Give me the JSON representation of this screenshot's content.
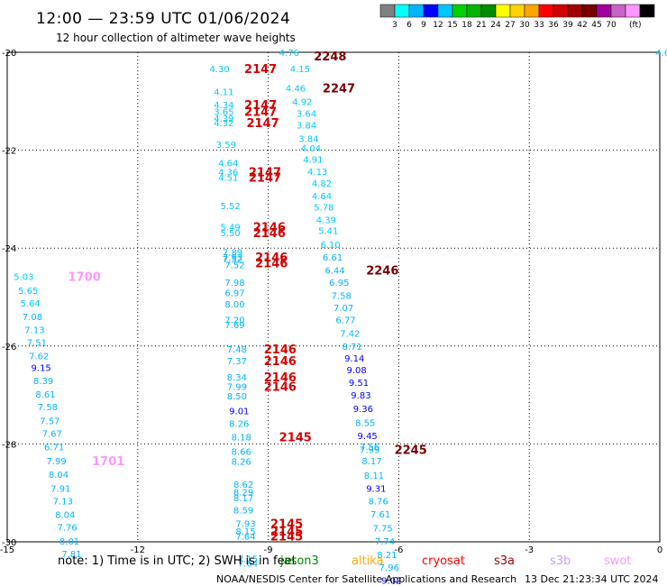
{
  "header": {
    "title": "12:00 — 23:59 UTC 01/06/2024",
    "subtitle": "12 hour collection of altimeter wave heights"
  },
  "colorbar": {
    "unit": "(ft)",
    "colors": [
      "#808080",
      "#00ffff",
      "#00b4ff",
      "#0000ff",
      "#00c8ff",
      "#00d200",
      "#00b400",
      "#008c00",
      "#ffff00",
      "#ffd200",
      "#ffa500",
      "#ff0000",
      "#d20000",
      "#a00000",
      "#780000",
      "#a000a0",
      "#c864c8",
      "#ff96ff",
      "#000000"
    ],
    "labels": [
      "3",
      "6",
      "9",
      "12",
      "15",
      "18",
      "21",
      "24",
      "27",
      "30",
      "33",
      "36",
      "39",
      "42",
      "45",
      "70"
    ]
  },
  "chart_data": {
    "type": "scatter",
    "title": "12:00 — 23:59 UTC 01/06/2024",
    "subtitle": "12 hour collection of altimeter wave heights",
    "xlim": [
      -15,
      0
    ],
    "ylim": [
      -30,
      -20
    ],
    "x_ticks": [
      "-15",
      "-12",
      "-9",
      "-6",
      "-3",
      "0"
    ],
    "y_ticks": [
      "-20",
      "-22",
      "-24",
      "-26",
      "-28",
      "-30"
    ],
    "grid": true,
    "points": [
      {
        "x": -8.75,
        "y": -20.0,
        "v": "4.76",
        "c": "#00c8ff"
      },
      {
        "x": -8.5,
        "y": -20.33,
        "v": "4.15",
        "c": "#00c8ff"
      },
      {
        "x": -10.35,
        "y": -20.33,
        "v": "4.30",
        "c": "#00c8ff"
      },
      {
        "x": -10.25,
        "y": -20.8,
        "v": "4.11",
        "c": "#00c8ff"
      },
      {
        "x": -8.6,
        "y": -20.73,
        "v": "4.46",
        "c": "#00c8ff"
      },
      {
        "x": -8.45,
        "y": -21.0,
        "v": "4.92",
        "c": "#00c8ff"
      },
      {
        "x": -10.25,
        "y": -21.07,
        "v": "4.34",
        "c": "#00c8ff"
      },
      {
        "x": -10.25,
        "y": -21.21,
        "v": "3.65",
        "c": "#00c8ff"
      },
      {
        "x": -10.25,
        "y": -21.34,
        "v": "4.39",
        "c": "#00c8ff"
      },
      {
        "x": -10.25,
        "y": -21.44,
        "v": "4.32",
        "c": "#00c8ff"
      },
      {
        "x": -8.35,
        "y": -21.24,
        "v": "3.64",
        "c": "#00c8ff"
      },
      {
        "x": -8.35,
        "y": -21.48,
        "v": "3.84",
        "c": "#00c8ff"
      },
      {
        "x": -8.3,
        "y": -21.76,
        "v": "3.84",
        "c": "#00c8ff"
      },
      {
        "x": -10.2,
        "y": -21.88,
        "v": "3.59",
        "c": "#00c8ff"
      },
      {
        "x": -8.25,
        "y": -21.95,
        "v": "4.04",
        "c": "#00c8ff"
      },
      {
        "x": -8.2,
        "y": -22.18,
        "v": "4.91",
        "c": "#00c8ff"
      },
      {
        "x": -10.15,
        "y": -22.26,
        "v": "4.64",
        "c": "#00c8ff"
      },
      {
        "x": -10.15,
        "y": -22.44,
        "v": "4.36",
        "c": "#00c8ff"
      },
      {
        "x": -10.15,
        "y": -22.55,
        "v": "4.51",
        "c": "#00c8ff"
      },
      {
        "x": -8.1,
        "y": -22.43,
        "v": "4.13",
        "c": "#00c8ff"
      },
      {
        "x": -8.0,
        "y": -22.67,
        "v": "4.82",
        "c": "#00c8ff"
      },
      {
        "x": -8.0,
        "y": -22.93,
        "v": "4.64",
        "c": "#00c8ff"
      },
      {
        "x": -7.95,
        "y": -23.16,
        "v": "5.78",
        "c": "#00c8ff"
      },
      {
        "x": -10.1,
        "y": -23.13,
        "v": "5.52",
        "c": "#00c8ff"
      },
      {
        "x": -7.9,
        "y": -23.42,
        "v": "4.39",
        "c": "#00c8ff"
      },
      {
        "x": -10.1,
        "y": -23.56,
        "v": "5.49",
        "c": "#00c8ff"
      },
      {
        "x": -10.1,
        "y": -23.68,
        "v": "5.50",
        "c": "#00c8ff"
      },
      {
        "x": -7.85,
        "y": -23.64,
        "v": "5.41",
        "c": "#00c8ff"
      },
      {
        "x": -7.8,
        "y": -23.92,
        "v": "6.10",
        "c": "#00c8ff"
      },
      {
        "x": -10.05,
        "y": -24.08,
        "v": "7.89",
        "c": "#00b4ff"
      },
      {
        "x": -10.05,
        "y": -24.18,
        "v": "7.93",
        "c": "#00b4ff"
      },
      {
        "x": -10.05,
        "y": -24.22,
        "v": "7.52",
        "c": "#00b4ff"
      },
      {
        "x": -10.0,
        "y": -24.34,
        "v": "7.52",
        "c": "#00b4ff"
      },
      {
        "x": -7.75,
        "y": -24.18,
        "v": "6.61",
        "c": "#00b4ff"
      },
      {
        "x": -7.7,
        "y": -24.45,
        "v": "6.44",
        "c": "#00b4ff"
      },
      {
        "x": -7.6,
        "y": -24.7,
        "v": "6.95",
        "c": "#00b4ff"
      },
      {
        "x": -10.0,
        "y": -24.7,
        "v": "7.98",
        "c": "#00b4ff"
      },
      {
        "x": -10.0,
        "y": -24.91,
        "v": "6.97",
        "c": "#00b4ff"
      },
      {
        "x": -7.55,
        "y": -24.96,
        "v": "7.58",
        "c": "#00b4ff"
      },
      {
        "x": -10.0,
        "y": -25.14,
        "v": "8.00",
        "c": "#00b4ff"
      },
      {
        "x": -7.5,
        "y": -25.21,
        "v": "7.07",
        "c": "#00b4ff"
      },
      {
        "x": -10.0,
        "y": -25.46,
        "v": "7.20",
        "c": "#00b4ff"
      },
      {
        "x": -10.0,
        "y": -25.56,
        "v": "7.69",
        "c": "#00b4ff"
      },
      {
        "x": -7.45,
        "y": -25.46,
        "v": "6.77",
        "c": "#00b4ff"
      },
      {
        "x": -7.35,
        "y": -25.74,
        "v": "7.42",
        "c": "#00b4ff"
      },
      {
        "x": -7.3,
        "y": -26.0,
        "v": "8.71",
        "c": "#00b4ff"
      },
      {
        "x": -9.95,
        "y": -26.06,
        "v": "7.48",
        "c": "#00b4ff"
      },
      {
        "x": -7.25,
        "y": -26.24,
        "v": "9.14",
        "c": "#0000ff"
      },
      {
        "x": -9.95,
        "y": -26.3,
        "v": "7.37",
        "c": "#00b4ff"
      },
      {
        "x": -7.2,
        "y": -26.48,
        "v": "9.08",
        "c": "#0000ff"
      },
      {
        "x": -9.95,
        "y": -26.63,
        "v": "8.34",
        "c": "#00b4ff"
      },
      {
        "x": -7.15,
        "y": -26.74,
        "v": "9.51",
        "c": "#0000ff"
      },
      {
        "x": -9.95,
        "y": -26.82,
        "v": "7.99",
        "c": "#00b4ff"
      },
      {
        "x": -9.95,
        "y": -27.02,
        "v": "8.50",
        "c": "#00b4ff"
      },
      {
        "x": -7.1,
        "y": -27.0,
        "v": "9.83",
        "c": "#0000ff"
      },
      {
        "x": -9.9,
        "y": -27.32,
        "v": "9.01",
        "c": "#0000ff"
      },
      {
        "x": -7.05,
        "y": -27.27,
        "v": "9.36",
        "c": "#0000ff"
      },
      {
        "x": -9.9,
        "y": -27.58,
        "v": "8.26",
        "c": "#00b4ff"
      },
      {
        "x": -7.0,
        "y": -27.56,
        "v": "8.55",
        "c": "#00b4ff"
      },
      {
        "x": -6.95,
        "y": -27.83,
        "v": "9.45",
        "c": "#0000ff"
      },
      {
        "x": -9.85,
        "y": -27.85,
        "v": "8.18",
        "c": "#00b4ff"
      },
      {
        "x": -6.9,
        "y": -28.05,
        "v": "7.56",
        "c": "#00b4ff"
      },
      {
        "x": -6.9,
        "y": -28.11,
        "v": "7.99",
        "c": "#00b4ff"
      },
      {
        "x": -9.85,
        "y": -28.15,
        "v": "8.66",
        "c": "#00b4ff"
      },
      {
        "x": -9.85,
        "y": -28.35,
        "v": "8.26",
        "c": "#00b4ff"
      },
      {
        "x": -6.85,
        "y": -28.34,
        "v": "8.17",
        "c": "#00b4ff"
      },
      {
        "x": -6.8,
        "y": -28.64,
        "v": "8.11",
        "c": "#00b4ff"
      },
      {
        "x": -9.8,
        "y": -28.82,
        "v": "8.62",
        "c": "#00b4ff"
      },
      {
        "x": -6.75,
        "y": -28.9,
        "v": "9.31",
        "c": "#0000ff"
      },
      {
        "x": -9.8,
        "y": -28.98,
        "v": "8.29",
        "c": "#00b4ff"
      },
      {
        "x": -9.8,
        "y": -29.1,
        "v": "8.17",
        "c": "#00b4ff"
      },
      {
        "x": -6.7,
        "y": -29.16,
        "v": "8.76",
        "c": "#00b4ff"
      },
      {
        "x": -9.8,
        "y": -29.35,
        "v": "8.59",
        "c": "#00b4ff"
      },
      {
        "x": -6.65,
        "y": -29.43,
        "v": "7.61",
        "c": "#00b4ff"
      },
      {
        "x": -9.75,
        "y": -29.62,
        "v": "7.93",
        "c": "#00b4ff"
      },
      {
        "x": -6.6,
        "y": -29.71,
        "v": "7.75",
        "c": "#00b4ff"
      },
      {
        "x": -9.75,
        "y": -29.78,
        "v": "8.15",
        "c": "#00b4ff"
      },
      {
        "x": -9.75,
        "y": -29.88,
        "v": "7.64",
        "c": "#00b4ff"
      },
      {
        "x": -6.55,
        "y": -29.98,
        "v": "7.74",
        "c": "#00b4ff"
      },
      {
        "x": -6.5,
        "y": -30.26,
        "v": "8.21",
        "c": "#00b4ff"
      },
      {
        "x": -9.7,
        "y": -30.34,
        "v": "7.15",
        "c": "#00b4ff"
      },
      {
        "x": -9.7,
        "y": -30.43,
        "v": "7.64",
        "c": "#00b4ff"
      },
      {
        "x": -6.45,
        "y": -30.52,
        "v": "7.96",
        "c": "#00b4ff"
      },
      {
        "x": -6.4,
        "y": -30.78,
        "v": "9.02",
        "c": "#0000ff"
      },
      {
        "x": -14.85,
        "y": -24.58,
        "v": "5.03",
        "c": "#00c8ff"
      },
      {
        "x": -14.75,
        "y": -24.86,
        "v": "5.65",
        "c": "#00c8ff"
      },
      {
        "x": -14.7,
        "y": -25.12,
        "v": "5.64",
        "c": "#00c8ff"
      },
      {
        "x": -14.65,
        "y": -25.4,
        "v": "7.08",
        "c": "#00b4ff"
      },
      {
        "x": -14.6,
        "y": -25.66,
        "v": "7.13",
        "c": "#00b4ff"
      },
      {
        "x": -14.55,
        "y": -25.92,
        "v": "7.51",
        "c": "#00b4ff"
      },
      {
        "x": -14.5,
        "y": -26.2,
        "v": "7.62",
        "c": "#00b4ff"
      },
      {
        "x": -14.45,
        "y": -26.44,
        "v": "9.15",
        "c": "#0000ff"
      },
      {
        "x": -14.4,
        "y": -26.7,
        "v": "8.39",
        "c": "#00b4ff"
      },
      {
        "x": -14.35,
        "y": -26.98,
        "v": "8.61",
        "c": "#00b4ff"
      },
      {
        "x": -14.3,
        "y": -27.24,
        "v": "7.58",
        "c": "#00b4ff"
      },
      {
        "x": -14.25,
        "y": -27.52,
        "v": "7.57",
        "c": "#00b4ff"
      },
      {
        "x": -14.2,
        "y": -27.78,
        "v": "7.67",
        "c": "#00b4ff"
      },
      {
        "x": -14.15,
        "y": -28.06,
        "v": "6.71",
        "c": "#00b4ff"
      },
      {
        "x": -14.1,
        "y": -28.34,
        "v": "7.99",
        "c": "#00b4ff"
      },
      {
        "x": -14.05,
        "y": -28.62,
        "v": "8.04",
        "c": "#00b4ff"
      },
      {
        "x": -14.0,
        "y": -28.9,
        "v": "7.91",
        "c": "#00b4ff"
      },
      {
        "x": -13.95,
        "y": -29.16,
        "v": "7.13",
        "c": "#00b4ff"
      },
      {
        "x": -13.9,
        "y": -29.44,
        "v": "8.04",
        "c": "#00b4ff"
      },
      {
        "x": -13.85,
        "y": -29.7,
        "v": "7.76",
        "c": "#00b4ff"
      },
      {
        "x": -13.8,
        "y": -29.98,
        "v": "8.01",
        "c": "#00b4ff"
      },
      {
        "x": -13.75,
        "y": -30.24,
        "v": "7.81",
        "c": "#00b4ff"
      },
      {
        "x": -0.1,
        "y": -20.0,
        "v": "4.6",
        "c": "#00c8ff"
      }
    ],
    "hour_labels": [
      {
        "x": -7.95,
        "y": -20.07,
        "v": "2248",
        "c": "#780000"
      },
      {
        "x": -9.55,
        "y": -20.33,
        "v": "2147",
        "c": "#d20000"
      },
      {
        "x": -7.75,
        "y": -20.73,
        "v": "2247",
        "c": "#780000"
      },
      {
        "x": -9.55,
        "y": -21.07,
        "v": "2147",
        "c": "#d20000"
      },
      {
        "x": -9.55,
        "y": -21.21,
        "v": "2147",
        "c": "#d20000"
      },
      {
        "x": -9.5,
        "y": -21.44,
        "v": "2147",
        "c": "#d20000"
      },
      {
        "x": -9.45,
        "y": -22.44,
        "v": "2147",
        "c": "#d20000"
      },
      {
        "x": -9.45,
        "y": -22.55,
        "v": "2147",
        "c": "#d20000"
      },
      {
        "x": -9.35,
        "y": -23.56,
        "v": "2146",
        "c": "#d20000"
      },
      {
        "x": -9.35,
        "y": -23.68,
        "v": "2146",
        "c": "#d20000"
      },
      {
        "x": -9.3,
        "y": -24.18,
        "v": "2146",
        "c": "#d20000"
      },
      {
        "x": -9.3,
        "y": -24.3,
        "v": "2146",
        "c": "#d20000"
      },
      {
        "x": -6.75,
        "y": -24.45,
        "v": "2246",
        "c": "#780000"
      },
      {
        "x": -13.6,
        "y": -24.58,
        "v": "1700",
        "c": "#ff96ff"
      },
      {
        "x": -9.1,
        "y": -26.06,
        "v": "2146",
        "c": "#d20000"
      },
      {
        "x": -9.1,
        "y": -26.3,
        "v": "2146",
        "c": "#d20000"
      },
      {
        "x": -9.1,
        "y": -26.63,
        "v": "2146",
        "c": "#d20000"
      },
      {
        "x": -9.1,
        "y": -26.82,
        "v": "2146",
        "c": "#d20000"
      },
      {
        "x": -8.75,
        "y": -27.85,
        "v": "2145",
        "c": "#d20000"
      },
      {
        "x": -6.1,
        "y": -28.11,
        "v": "2245",
        "c": "#780000"
      },
      {
        "x": -13.05,
        "y": -28.34,
        "v": "1701",
        "c": "#ff96ff"
      },
      {
        "x": -8.95,
        "y": -29.62,
        "v": "2145",
        "c": "#d20000"
      },
      {
        "x": -8.95,
        "y": -29.78,
        "v": "2145",
        "c": "#d20000"
      },
      {
        "x": -8.95,
        "y": -29.88,
        "v": "2145",
        "c": "#d20000"
      }
    ]
  },
  "footer": {
    "note": "note:  1) Time is in UTC; 2) SWH is in feet",
    "satellites": [
      {
        "name": "jason3",
        "color": "#008c00"
      },
      {
        "name": "altika",
        "color": "#ffa500"
      },
      {
        "name": "cryosat",
        "color": "#ff0000"
      },
      {
        "name": "s3a",
        "color": "#a00000"
      },
      {
        "name": "s3b",
        "color": "#c8a0ff"
      },
      {
        "name": "swot",
        "color": "#ff96ff"
      }
    ],
    "credit": "NOAA/NESDIS Center for Satellite Applications and Research",
    "timestamp": "13 Dec 21:23:34 UTC 2024"
  }
}
